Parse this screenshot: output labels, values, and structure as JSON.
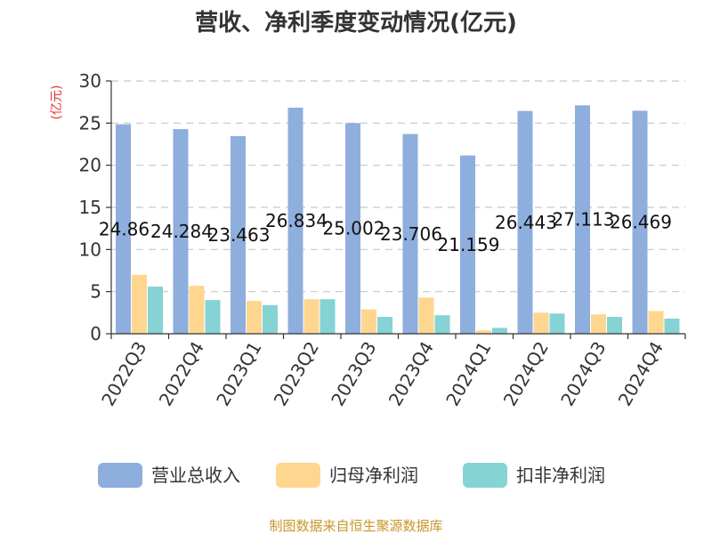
{
  "chart_data": {
    "type": "bar",
    "title": "营收、净利季度变动情况(亿元)",
    "ylabel": "(亿元)",
    "xlabel": "",
    "categories": [
      "2022Q3",
      "2022Q4",
      "2023Q1",
      "2023Q2",
      "2023Q3",
      "2023Q4",
      "2024Q1",
      "2024Q2",
      "2024Q3",
      "2024Q4"
    ],
    "series": [
      {
        "name": "营业总收入",
        "color": "#8eaedd",
        "values": [
          24.86,
          24.284,
          23.463,
          26.834,
          25.002,
          23.706,
          21.159,
          26.443,
          27.113,
          26.469
        ]
      },
      {
        "name": "归母净利润",
        "color": "#ffd68f",
        "values": [
          7.0,
          5.7,
          3.9,
          4.1,
          2.9,
          4.3,
          0.4,
          2.5,
          2.3,
          2.7
        ]
      },
      {
        "name": "扣非净利润",
        "color": "#85d3d5",
        "values": [
          5.6,
          4.0,
          3.4,
          4.1,
          2.0,
          2.2,
          0.7,
          2.4,
          2.0,
          1.8
        ]
      }
    ],
    "data_labels": [
      "24.86",
      "24.284",
      "23.463",
      "26.834",
      "25.002",
      "23.706",
      "21.159",
      "26.443",
      "27.113",
      "26.469"
    ],
    "ylim": [
      0,
      30
    ],
    "yticks": [
      0,
      5,
      10,
      15,
      20,
      25,
      30
    ],
    "grid": true,
    "legend_position": "bottom"
  },
  "colors": {
    "title": "#333333",
    "ylabel": "#e8352d",
    "grid": "#c8c8c8",
    "axis": "#333333",
    "source": "#c8962a"
  },
  "source_text": "制图数据来自恒生聚源数据库"
}
